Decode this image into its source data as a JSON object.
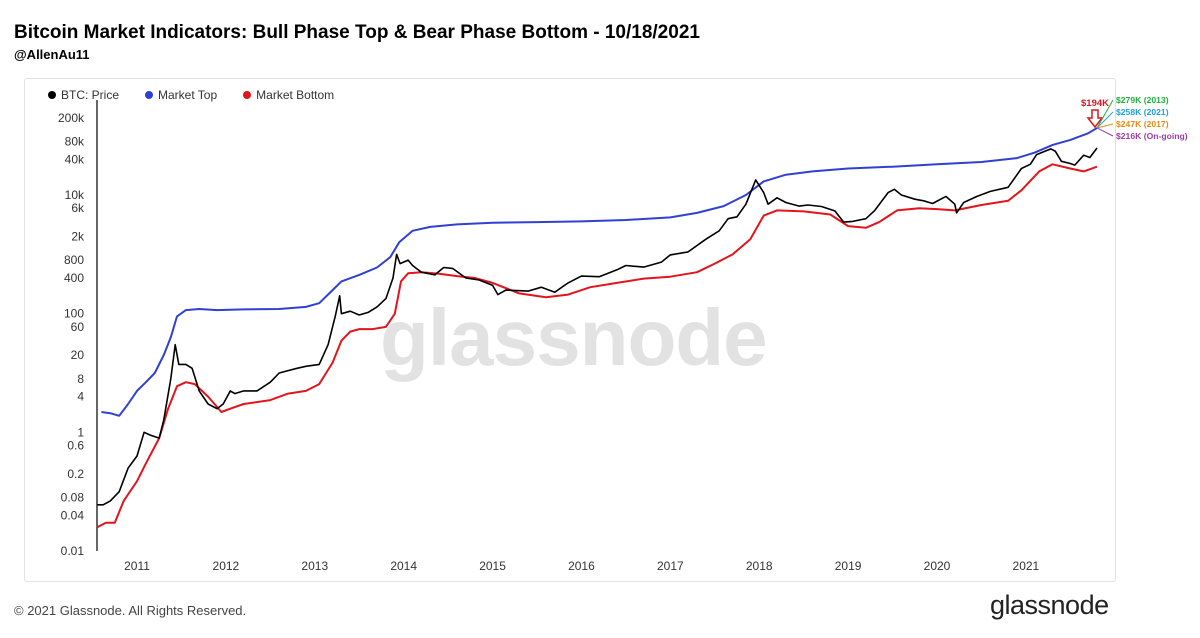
{
  "header": {
    "title": "Bitcoin Market Indicators: Bull Phase Top & Bear Phase Bottom - 10/18/2021",
    "author": "@AllenAu11"
  },
  "footer": {
    "copyright": "© 2021 Glassnode. All Rights Reserved.",
    "brand": "glassnode",
    "watermark": "glassnode"
  },
  "colors": {
    "price": "#000000",
    "top": "#3140d4",
    "bottom": "#e4141c"
  },
  "chart_data": {
    "type": "line",
    "title": "Bitcoin Market Indicators: Bull Phase Top & Bear Phase Bottom - 10/18/2021",
    "xlabel": "",
    "ylabel": "",
    "yscale": "log",
    "ylim": [
      0.01,
      400000
    ],
    "xlim": [
      2010.55,
      2021.8
    ],
    "x_ticks": [
      "2011",
      "2012",
      "2013",
      "2014",
      "2015",
      "2016",
      "2017",
      "2018",
      "2019",
      "2020",
      "2021"
    ],
    "y_ticks": [
      "0.01",
      "0.04",
      "0.08",
      "0.2",
      "0.6",
      "1",
      "4",
      "8",
      "20",
      "60",
      "100",
      "400",
      "800",
      "2k",
      "6k",
      "10k",
      "40k",
      "80k",
      "200k"
    ],
    "y_tick_values": [
      0.01,
      0.04,
      0.08,
      0.2,
      0.6,
      1,
      4,
      8,
      20,
      60,
      100,
      400,
      800,
      2000,
      6000,
      10000,
      40000,
      80000,
      200000
    ],
    "legend": [
      "BTC: Price",
      "Market Top",
      "Market Bottom"
    ],
    "series": [
      {
        "name": "BTC: Price",
        "color": "#000000",
        "points": [
          [
            2010.55,
            0.06
          ],
          [
            2010.62,
            0.06
          ],
          [
            2010.7,
            0.07
          ],
          [
            2010.8,
            0.1
          ],
          [
            2010.9,
            0.25
          ],
          [
            2011.0,
            0.4
          ],
          [
            2011.08,
            1.0
          ],
          [
            2011.15,
            0.9
          ],
          [
            2011.25,
            0.8
          ],
          [
            2011.3,
            1.6
          ],
          [
            2011.38,
            8
          ],
          [
            2011.43,
            30
          ],
          [
            2011.47,
            14
          ],
          [
            2011.55,
            14
          ],
          [
            2011.62,
            12
          ],
          [
            2011.7,
            5
          ],
          [
            2011.8,
            3
          ],
          [
            2011.9,
            2.5
          ],
          [
            2011.97,
            3
          ],
          [
            2012.05,
            5
          ],
          [
            2012.1,
            4.5
          ],
          [
            2012.2,
            5
          ],
          [
            2012.35,
            5
          ],
          [
            2012.5,
            7
          ],
          [
            2012.6,
            10
          ],
          [
            2012.7,
            11
          ],
          [
            2012.8,
            12
          ],
          [
            2012.9,
            13
          ],
          [
            2013.05,
            14
          ],
          [
            2013.15,
            30
          ],
          [
            2013.23,
            90
          ],
          [
            2013.28,
            200
          ],
          [
            2013.3,
            100
          ],
          [
            2013.4,
            110
          ],
          [
            2013.5,
            95
          ],
          [
            2013.6,
            105
          ],
          [
            2013.7,
            130
          ],
          [
            2013.8,
            180
          ],
          [
            2013.88,
            400
          ],
          [
            2013.92,
            1000
          ],
          [
            2013.96,
            700
          ],
          [
            2014.05,
            800
          ],
          [
            2014.1,
            650
          ],
          [
            2014.2,
            500
          ],
          [
            2014.35,
            450
          ],
          [
            2014.45,
            600
          ],
          [
            2014.55,
            580
          ],
          [
            2014.7,
            400
          ],
          [
            2014.85,
            370
          ],
          [
            2015.0,
            300
          ],
          [
            2015.06,
            210
          ],
          [
            2015.15,
            250
          ],
          [
            2015.4,
            240
          ],
          [
            2015.55,
            280
          ],
          [
            2015.7,
            230
          ],
          [
            2015.85,
            330
          ],
          [
            2016.0,
            430
          ],
          [
            2016.2,
            420
          ],
          [
            2016.4,
            550
          ],
          [
            2016.5,
            650
          ],
          [
            2016.7,
            610
          ],
          [
            2016.9,
            740
          ],
          [
            2017.0,
            980
          ],
          [
            2017.2,
            1100
          ],
          [
            2017.4,
            1800
          ],
          [
            2017.55,
            2500
          ],
          [
            2017.65,
            4000
          ],
          [
            2017.75,
            4300
          ],
          [
            2017.85,
            7000
          ],
          [
            2017.96,
            18000
          ],
          [
            2018.05,
            11000
          ],
          [
            2018.1,
            7000
          ],
          [
            2018.2,
            9000
          ],
          [
            2018.3,
            7500
          ],
          [
            2018.45,
            6500
          ],
          [
            2018.55,
            6800
          ],
          [
            2018.7,
            6400
          ],
          [
            2018.85,
            5400
          ],
          [
            2018.95,
            3500
          ],
          [
            2019.05,
            3600
          ],
          [
            2019.2,
            4000
          ],
          [
            2019.3,
            5500
          ],
          [
            2019.45,
            11000
          ],
          [
            2019.52,
            12500
          ],
          [
            2019.6,
            10000
          ],
          [
            2019.75,
            8500
          ],
          [
            2019.85,
            8000
          ],
          [
            2019.95,
            7200
          ],
          [
            2020.1,
            9500
          ],
          [
            2020.2,
            7000
          ],
          [
            2020.22,
            5000
          ],
          [
            2020.3,
            7500
          ],
          [
            2020.45,
            9500
          ],
          [
            2020.6,
            11500
          ],
          [
            2020.8,
            13500
          ],
          [
            2020.95,
            28000
          ],
          [
            2021.05,
            33000
          ],
          [
            2021.12,
            48000
          ],
          [
            2021.28,
            60000
          ],
          [
            2021.33,
            55000
          ],
          [
            2021.4,
            37000
          ],
          [
            2021.5,
            34000
          ],
          [
            2021.55,
            32000
          ],
          [
            2021.65,
            47000
          ],
          [
            2021.72,
            43000
          ],
          [
            2021.8,
            62000
          ]
        ]
      },
      {
        "name": "Market Top",
        "color": "#3140d4",
        "points": [
          [
            2010.6,
            2.2
          ],
          [
            2010.7,
            2.1
          ],
          [
            2010.8,
            1.9
          ],
          [
            2010.9,
            3
          ],
          [
            2011.0,
            5
          ],
          [
            2011.1,
            7
          ],
          [
            2011.2,
            10
          ],
          [
            2011.3,
            20
          ],
          [
            2011.38,
            40
          ],
          [
            2011.45,
            90
          ],
          [
            2011.55,
            115
          ],
          [
            2011.7,
            120
          ],
          [
            2011.9,
            115
          ],
          [
            2012.2,
            118
          ],
          [
            2012.6,
            120
          ],
          [
            2012.9,
            130
          ],
          [
            2013.05,
            150
          ],
          [
            2013.2,
            250
          ],
          [
            2013.3,
            350
          ],
          [
            2013.5,
            450
          ],
          [
            2013.7,
            600
          ],
          [
            2013.85,
            900
          ],
          [
            2013.95,
            1600
          ],
          [
            2014.1,
            2500
          ],
          [
            2014.3,
            2900
          ],
          [
            2014.6,
            3200
          ],
          [
            2015.0,
            3400
          ],
          [
            2015.5,
            3500
          ],
          [
            2016.0,
            3600
          ],
          [
            2016.5,
            3800
          ],
          [
            2017.0,
            4200
          ],
          [
            2017.3,
            5000
          ],
          [
            2017.6,
            6500
          ],
          [
            2017.85,
            10000
          ],
          [
            2018.05,
            17000
          ],
          [
            2018.3,
            22000
          ],
          [
            2018.6,
            25000
          ],
          [
            2019.0,
            28000
          ],
          [
            2019.5,
            30000
          ],
          [
            2020.0,
            33000
          ],
          [
            2020.5,
            36000
          ],
          [
            2020.9,
            42000
          ],
          [
            2021.1,
            52000
          ],
          [
            2021.3,
            70000
          ],
          [
            2021.5,
            85000
          ],
          [
            2021.7,
            110000
          ],
          [
            2021.8,
            135000
          ]
        ]
      },
      {
        "name": "Market Bottom",
        "color": "#e4141c",
        "points": [
          [
            2010.55,
            0.025
          ],
          [
            2010.65,
            0.03
          ],
          [
            2010.75,
            0.03
          ],
          [
            2010.85,
            0.07
          ],
          [
            2011.0,
            0.15
          ],
          [
            2011.1,
            0.3
          ],
          [
            2011.25,
            0.8
          ],
          [
            2011.35,
            2.5
          ],
          [
            2011.45,
            6
          ],
          [
            2011.55,
            7
          ],
          [
            2011.65,
            6.5
          ],
          [
            2011.8,
            4
          ],
          [
            2011.95,
            2.2
          ],
          [
            2012.05,
            2.5
          ],
          [
            2012.2,
            3
          ],
          [
            2012.5,
            3.5
          ],
          [
            2012.7,
            4.5
          ],
          [
            2012.9,
            5
          ],
          [
            2013.05,
            6.5
          ],
          [
            2013.2,
            15
          ],
          [
            2013.3,
            35
          ],
          [
            2013.4,
            50
          ],
          [
            2013.5,
            55
          ],
          [
            2013.65,
            55
          ],
          [
            2013.8,
            60
          ],
          [
            2013.9,
            100
          ],
          [
            2013.97,
            350
          ],
          [
            2014.05,
            480
          ],
          [
            2014.2,
            500
          ],
          [
            2014.4,
            470
          ],
          [
            2014.6,
            430
          ],
          [
            2014.8,
            400
          ],
          [
            2015.0,
            330
          ],
          [
            2015.3,
            220
          ],
          [
            2015.6,
            190
          ],
          [
            2015.85,
            210
          ],
          [
            2016.1,
            280
          ],
          [
            2016.4,
            330
          ],
          [
            2016.7,
            390
          ],
          [
            2017.0,
            420
          ],
          [
            2017.3,
            500
          ],
          [
            2017.5,
            700
          ],
          [
            2017.7,
            1000
          ],
          [
            2017.9,
            1800
          ],
          [
            2018.05,
            4500
          ],
          [
            2018.2,
            5500
          ],
          [
            2018.5,
            5300
          ],
          [
            2018.8,
            4700
          ],
          [
            2019.0,
            3000
          ],
          [
            2019.2,
            2800
          ],
          [
            2019.35,
            3500
          ],
          [
            2019.55,
            5500
          ],
          [
            2019.8,
            6000
          ],
          [
            2020.0,
            5800
          ],
          [
            2020.2,
            5500
          ],
          [
            2020.5,
            6800
          ],
          [
            2020.8,
            8000
          ],
          [
            2020.95,
            12000
          ],
          [
            2021.15,
            25000
          ],
          [
            2021.3,
            33000
          ],
          [
            2021.5,
            28000
          ],
          [
            2021.65,
            25000
          ],
          [
            2021.8,
            30000
          ]
        ]
      }
    ],
    "annotations": {
      "arrow_label": "$194K",
      "projections": [
        {
          "label": "$279K (2013)",
          "color": "#1db33a"
        },
        {
          "label": "$258K (2021)",
          "color": "#21a2d6"
        },
        {
          "label": "$247K (2017)",
          "color": "#e98a14"
        },
        {
          "label": "$216K (On-going)",
          "color": "#9b3fa6"
        }
      ]
    }
  }
}
